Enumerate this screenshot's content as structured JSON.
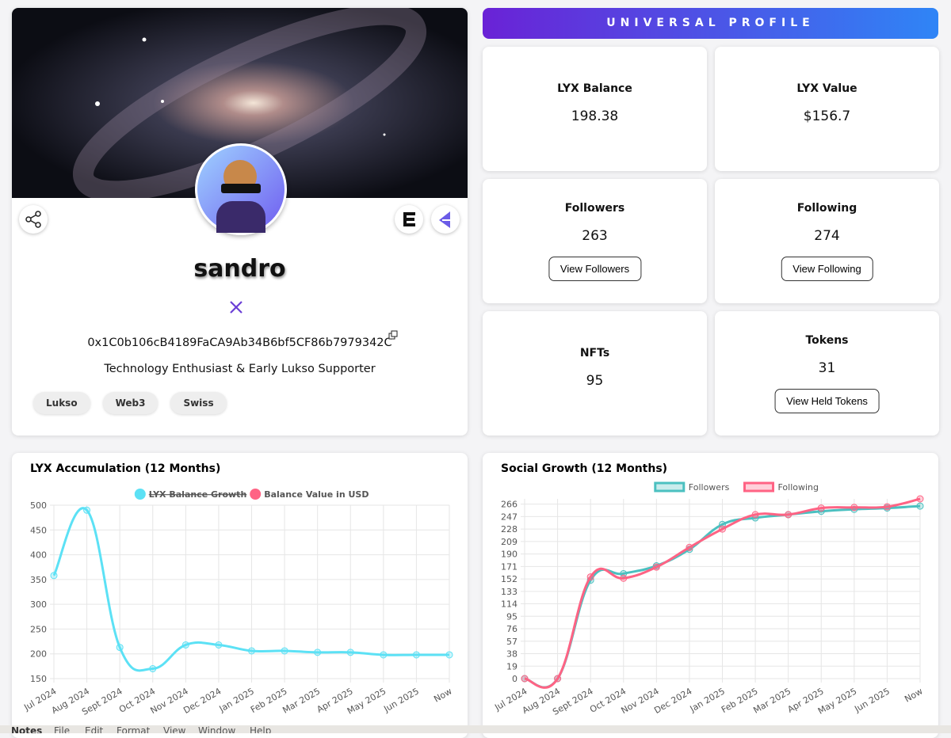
{
  "header": {
    "title": "UNIVERSAL PROFILE"
  },
  "profile": {
    "name": "sandro",
    "address": "0x1C0b106cB4189FaCA9Ab34B6bf5CF86b7979342C",
    "bio": "Technology Enthusiast & Early Lukso Supporter",
    "tags": [
      "Lukso",
      "Web3",
      "Swiss"
    ]
  },
  "stats": [
    {
      "label": "LYX Balance",
      "value": "198.38"
    },
    {
      "label": "LYX Value",
      "value": "$156.7"
    },
    {
      "label": "Followers",
      "value": "263",
      "button": "View Followers"
    },
    {
      "label": "Following",
      "value": "274",
      "button": "View Following"
    },
    {
      "label": "NFTs",
      "value": "95"
    },
    {
      "label": "Tokens",
      "value": "31",
      "button": "View Held Tokens"
    }
  ],
  "chart_data": [
    {
      "type": "line",
      "title": "LYX Accumulation (12 Months)",
      "categories": [
        "Jul 2024",
        "Aug 2024",
        "Sept 2024",
        "Oct 2024",
        "Nov 2024",
        "Dec 2024",
        "Jan 2025",
        "Feb 2025",
        "Mar 2025",
        "Apr 2025",
        "May 2025",
        "Jun 2025",
        "Now"
      ],
      "series": [
        {
          "name": "LYX Balance Growth",
          "color": "#5ce1f5",
          "strikethrough": true,
          "values": [
            358,
            490,
            213,
            170,
            218,
            218,
            206,
            206,
            203,
            203,
            198,
            198,
            198
          ]
        },
        {
          "name": "Balance Value in USD",
          "color": "#ff6384",
          "values": [
            null,
            null,
            null,
            null,
            null,
            null,
            null,
            null,
            null,
            null,
            null,
            null,
            null
          ]
        }
      ],
      "ylim": [
        150,
        500
      ],
      "yticks": [
        150,
        200,
        250,
        300,
        350,
        400,
        450,
        500
      ],
      "grid": true,
      "legend_symbol": "circle"
    },
    {
      "type": "line",
      "title": "Social Growth (12 Months)",
      "categories": [
        "Jul 2024",
        "Aug 2024",
        "Sept 2024",
        "Oct 2024",
        "Nov 2024",
        "Dec 2024",
        "Jan 2025",
        "Feb 2025",
        "Mar 2025",
        "Apr 2025",
        "May 2025",
        "Jun 2025",
        "Now"
      ],
      "series": [
        {
          "name": "Followers",
          "color": "#4bc0c0",
          "values": [
            0,
            0,
            150,
            160,
            172,
            197,
            235,
            245,
            250,
            255,
            258,
            260,
            263
          ]
        },
        {
          "name": "Following",
          "color": "#ff6384",
          "values": [
            0,
            0,
            155,
            153,
            170,
            200,
            228,
            250,
            250,
            260,
            261,
            262,
            274
          ]
        }
      ],
      "ylim": [
        0,
        274
      ],
      "yticks": [
        0,
        19,
        38,
        57,
        76,
        95,
        114,
        133,
        152,
        171,
        190,
        209,
        228,
        247,
        266
      ],
      "grid": true,
      "legend_symbol": "box"
    }
  ],
  "menu_bar": {
    "items": [
      "Notes",
      "File",
      "Edit",
      "Format",
      "View",
      "Window",
      "Help"
    ]
  }
}
